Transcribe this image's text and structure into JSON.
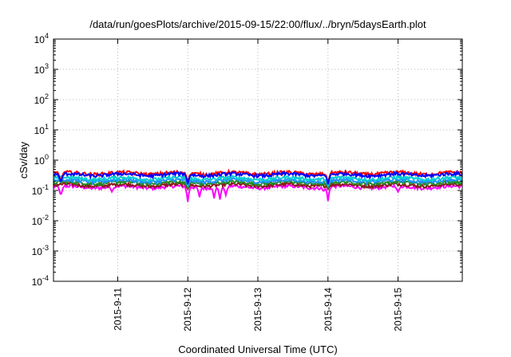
{
  "chart_data": {
    "type": "line",
    "title": "/data/run/goesPlots/archive/2015-09-15/22:00/flux/../bryn/5daysEarth.plot",
    "xlabel": "Coordinated Universal Time (UTC)",
    "ylabel": "cSv/day",
    "y_scale": "log",
    "ylim": [
      0.0001,
      10000
    ],
    "y_ticks": [
      {
        "value": 0.0001,
        "base": "10",
        "exp": "-4"
      },
      {
        "value": 0.001,
        "base": "10",
        "exp": "-3"
      },
      {
        "value": 0.01,
        "base": "10",
        "exp": "-2"
      },
      {
        "value": 0.1,
        "base": "10",
        "exp": "-1"
      },
      {
        "value": 1,
        "base": "10",
        "exp": "0"
      },
      {
        "value": 10,
        "base": "10",
        "exp": "1"
      },
      {
        "value": 100,
        "base": "10",
        "exp": "2"
      },
      {
        "value": 1000,
        "base": "10",
        "exp": "3"
      },
      {
        "value": 10000,
        "base": "10",
        "exp": "4"
      }
    ],
    "xlim": [
      "2015-09-10T02:00",
      "2015-09-15T22:00"
    ],
    "x_ticks": [
      {
        "value": "2015-09-11T00:00",
        "label": "2015-9-11"
      },
      {
        "value": "2015-09-12T00:00",
        "label": "2015-9-12"
      },
      {
        "value": "2015-09-13T00:00",
        "label": "2015-9-13"
      },
      {
        "value": "2015-09-14T00:00",
        "label": "2015-9-14"
      },
      {
        "value": "2015-09-15T00:00",
        "label": "2015-9-15"
      }
    ],
    "grid": true,
    "series": [
      {
        "color": "#ff00ff",
        "base": 0.13,
        "dips": [
          {
            "at": "2015-09-10T04:30",
            "value": 0.065
          },
          {
            "at": "2015-09-10T22:00",
            "value": 0.09
          },
          {
            "at": "2015-09-12T00:00",
            "value": 0.042
          },
          {
            "at": "2015-09-12T04:00",
            "value": 0.06
          },
          {
            "at": "2015-09-12T09:00",
            "value": 0.055
          },
          {
            "at": "2015-09-12T11:00",
            "value": 0.05
          },
          {
            "at": "2015-09-12T13:00",
            "value": 0.07
          },
          {
            "at": "2015-09-13T22:30",
            "value": 0.09
          },
          {
            "at": "2015-09-14T00:00",
            "value": 0.045
          },
          {
            "at": "2015-09-15T00:00",
            "value": 0.09
          }
        ]
      },
      {
        "color": "#8b1a1a",
        "base": 0.15,
        "dips": [
          {
            "at": "2015-09-12T00:00",
            "value": 0.11
          },
          {
            "at": "2015-09-14T00:00",
            "value": 0.11
          }
        ]
      },
      {
        "color": "#228b22",
        "base": 0.18,
        "dips": [
          {
            "at": "2015-09-12T00:00",
            "value": 0.12
          },
          {
            "at": "2015-09-14T00:00",
            "value": 0.12
          }
        ]
      },
      {
        "color": "#1e90ff",
        "base": 0.21,
        "dips": [
          {
            "at": "2015-09-12T00:00",
            "value": 0.14
          },
          {
            "at": "2015-09-14T00:00",
            "value": 0.14
          }
        ]
      },
      {
        "color": "#00ced1",
        "base": 0.25,
        "dips": [
          {
            "at": "2015-09-12T00:00",
            "value": 0.15
          },
          {
            "at": "2015-09-14T00:00",
            "value": 0.15
          }
        ]
      },
      {
        "color": "#ff0000",
        "base": 0.37,
        "dips": [
          {
            "at": "2015-09-10T04:30",
            "value": 0.2
          },
          {
            "at": "2015-09-12T00:00",
            "value": 0.18
          },
          {
            "at": "2015-09-14T00:00",
            "value": 0.17
          }
        ]
      },
      {
        "color": "#0000ff",
        "base": 0.33,
        "dips": [
          {
            "at": "2015-09-10T04:30",
            "value": 0.18
          },
          {
            "at": "2015-09-12T00:00",
            "value": 0.16
          },
          {
            "at": "2015-09-14T00:00",
            "value": 0.16
          }
        ]
      }
    ]
  }
}
